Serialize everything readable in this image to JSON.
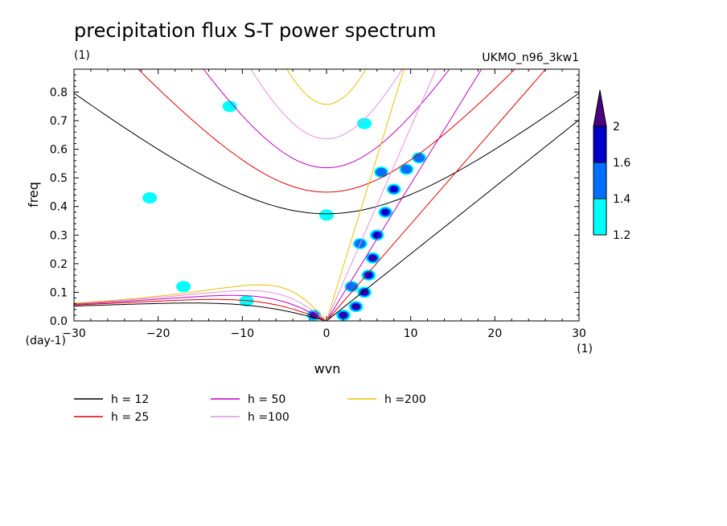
{
  "chart_data": {
    "type": "line",
    "title": "precipitation flux S-T power spectrum",
    "subtitle_left": "(1)",
    "subtitle_right": "UKMO_n96_3kw1",
    "xlabel": "wvn",
    "ylabel": "freq",
    "x_unit": "(1)",
    "y_unit": "(day-1)",
    "xlim": [
      -30,
      30
    ],
    "ylim": [
      0,
      0.88
    ],
    "xticks": [
      -30,
      -20,
      -10,
      0,
      10,
      20,
      30
    ],
    "xtick_labels": [
      "−30",
      "−20",
      "−10",
      "0",
      "10",
      "20",
      "30"
    ],
    "yticks": [
      0,
      0.1,
      0.2,
      0.3,
      0.4,
      0.5,
      0.6,
      0.7,
      0.8
    ],
    "ytick_labels": [
      "0.0",
      "0.1",
      "0.2",
      "0.3",
      "0.4",
      "0.5",
      "0.6",
      "0.7",
      "0.8"
    ],
    "grid": false,
    "series": [
      {
        "name": "h = 12",
        "color": "#000000",
        "h": 12
      },
      {
        "name": "h = 25",
        "color": "#e00000",
        "h": 25
      },
      {
        "name": "h = 50",
        "color": "#c000c0",
        "h": 50
      },
      {
        "name": "h =100",
        "color": "#e090e0",
        "h": 100
      },
      {
        "name": "h =200",
        "color": "#e8c000",
        "h": 200
      }
    ],
    "colorbar": {
      "levels": [
        "1.2",
        "1.4",
        "1.6",
        "2"
      ],
      "colors": [
        "#00ffff",
        "#0070ff",
        "#0000c8",
        "#4b0082"
      ]
    },
    "shaded_regions": [
      {
        "wvn": 2.0,
        "freq": 0.02,
        "level": 4
      },
      {
        "wvn": 3.5,
        "freq": 0.05,
        "level": 4
      },
      {
        "wvn": 4.5,
        "freq": 0.1,
        "level": 4
      },
      {
        "wvn": 5.0,
        "freq": 0.16,
        "level": 3
      },
      {
        "wvn": 5.5,
        "freq": 0.22,
        "level": 4
      },
      {
        "wvn": 6.0,
        "freq": 0.3,
        "level": 3
      },
      {
        "wvn": 7.0,
        "freq": 0.38,
        "level": 3
      },
      {
        "wvn": 8.0,
        "freq": 0.46,
        "level": 3
      },
      {
        "wvn": 9.5,
        "freq": 0.53,
        "level": 2
      },
      {
        "wvn": 11.0,
        "freq": 0.57,
        "level": 2
      },
      {
        "wvn": 6.5,
        "freq": 0.52,
        "level": 2
      },
      {
        "wvn": 4.0,
        "freq": 0.27,
        "level": 2
      },
      {
        "wvn": 3.0,
        "freq": 0.12,
        "level": 2
      },
      {
        "wvn": -1.5,
        "freq": 0.02,
        "level": 3
      },
      {
        "wvn": -9.5,
        "freq": 0.07,
        "level": 1
      },
      {
        "wvn": -17.0,
        "freq": 0.12,
        "level": 1
      },
      {
        "wvn": -11.5,
        "freq": 0.75,
        "level": 1
      },
      {
        "wvn": 4.5,
        "freq": 0.69,
        "level": 1
      },
      {
        "wvn": 0.0,
        "freq": 0.37,
        "level": 1
      },
      {
        "wvn": -21.0,
        "freq": 0.43,
        "level": 1
      }
    ]
  }
}
